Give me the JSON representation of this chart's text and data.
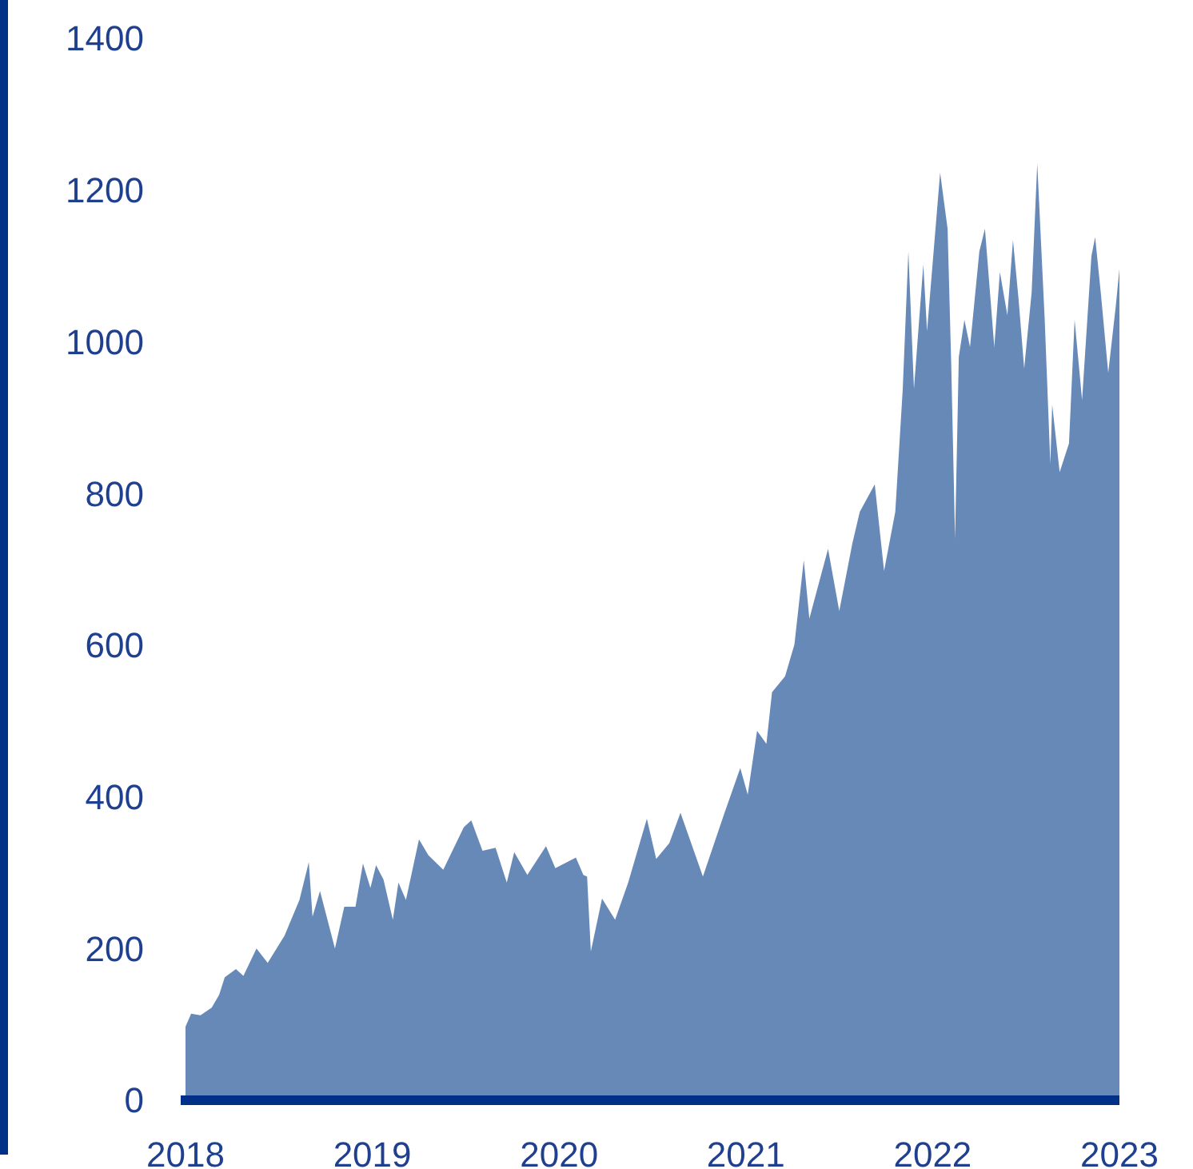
{
  "chart_data": {
    "type": "area",
    "color": "#6789b8",
    "x": [
      2018.0,
      2018.03,
      2018.08,
      2018.14,
      2018.18,
      2018.21,
      2018.27,
      2018.31,
      2018.38,
      2018.44,
      2018.53,
      2018.61,
      2018.66,
      2018.68,
      2018.72,
      2018.8,
      2018.85,
      2018.91,
      2018.95,
      2018.99,
      2019.02,
      2019.06,
      2019.11,
      2019.14,
      2019.18,
      2019.25,
      2019.3,
      2019.38,
      2019.49,
      2019.53,
      2019.59,
      2019.66,
      2019.72,
      2019.76,
      2019.83,
      2019.93,
      2019.98,
      2020.09,
      2020.13,
      2020.15,
      2020.17,
      2020.23,
      2020.3,
      2020.37,
      2020.47,
      2020.52,
      2020.59,
      2020.65,
      2020.77,
      2020.89,
      2020.97,
      2021.01,
      2021.06,
      2021.11,
      2021.14,
      2021.21,
      2021.26,
      2021.31,
      2021.34,
      2021.44,
      2021.5,
      2021.57,
      2021.61,
      2021.69,
      2021.74,
      2021.8,
      2021.84,
      2021.87,
      2021.9,
      2021.95,
      2021.97,
      2022.04,
      2022.08,
      2022.1,
      2022.12,
      2022.14,
      2022.17,
      2022.2,
      2022.25,
      2022.28,
      2022.33,
      2022.36,
      2022.4,
      2022.43,
      2022.46,
      2022.49,
      2022.53,
      2022.56,
      2022.6,
      2022.63,
      2022.64,
      2022.68,
      2022.73,
      2022.76,
      2022.8,
      2022.85,
      2022.87,
      2022.9,
      2022.94,
      2022.98,
      2023.0
    ],
    "values": [
      97,
      114,
      112,
      122,
      139,
      162,
      173,
      164,
      200,
      181,
      217,
      264,
      314,
      242,
      276,
      200,
      255,
      255,
      312,
      280,
      310,
      291,
      238,
      287,
      264,
      344,
      323,
      304,
      360,
      369,
      329,
      333,
      287,
      327,
      297,
      335,
      306,
      320,
      297,
      295,
      196,
      266,
      238,
      287,
      371,
      318,
      339,
      379,
      295,
      382,
      438,
      403,
      487,
      470,
      538,
      559,
      601,
      712,
      635,
      727,
      645,
      734,
      776,
      812,
      698,
      776,
      938,
      1119,
      938,
      1102,
      1014,
      1223,
      1149,
      965,
      740,
      980,
      1029,
      993,
      1119,
      1149,
      993,
      1092,
      1035,
      1134,
      1056,
      965,
      1065,
      1235,
      1029,
      839,
      917,
      828,
      866,
      1029,
      923,
      1113,
      1138,
      1065,
      959,
      1046,
      1096
    ],
    "xlim": [
      2018,
      2023
    ],
    "xticks": [
      2018,
      2019,
      2020,
      2021,
      2022,
      2023
    ],
    "ylim": [
      0,
      1400
    ],
    "yticks": [
      0,
      200,
      400,
      600,
      800,
      1000,
      1200,
      1400
    ],
    "grid": false
  }
}
